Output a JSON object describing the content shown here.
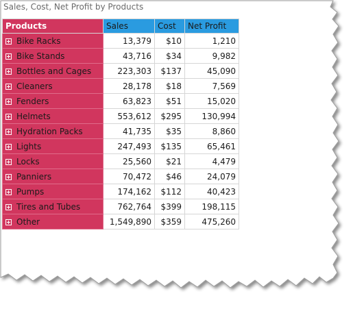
{
  "title": "Sales, Cost, Net Profit by Products",
  "colors": {
    "row_header": "#d1365e",
    "column_header": "#2a9be0",
    "row_header_border": "#e06c8a"
  },
  "columns": {
    "products": "Products",
    "sales": "Sales",
    "cost": "Cost",
    "net_profit": "Net Profit"
  },
  "expander_icon": "plus-box-icon",
  "rows": [
    {
      "product": "Bike Racks",
      "sales": "13,379",
      "cost": "$10",
      "net_profit": "1,210"
    },
    {
      "product": "Bike Stands",
      "sales": "43,716",
      "cost": "$34",
      "net_profit": "9,982"
    },
    {
      "product": "Bottles and Cages",
      "sales": "223,303",
      "cost": "$137",
      "net_profit": "45,090"
    },
    {
      "product": "Cleaners",
      "sales": "28,178",
      "cost": "$18",
      "net_profit": "7,569"
    },
    {
      "product": "Fenders",
      "sales": "63,823",
      "cost": "$51",
      "net_profit": "15,020"
    },
    {
      "product": "Helmets",
      "sales": "553,612",
      "cost": "$295",
      "net_profit": "130,994"
    },
    {
      "product": "Hydration Packs",
      "sales": "41,735",
      "cost": "$35",
      "net_profit": "8,860"
    },
    {
      "product": "Lights",
      "sales": "247,493",
      "cost": "$135",
      "net_profit": "65,461"
    },
    {
      "product": "Locks",
      "sales": "25,560",
      "cost": "$21",
      "net_profit": "4,479"
    },
    {
      "product": "Panniers",
      "sales": "70,472",
      "cost": "$46",
      "net_profit": "24,079"
    },
    {
      "product": "Pumps",
      "sales": "174,162",
      "cost": "$112",
      "net_profit": "40,423"
    },
    {
      "product": "Tires and Tubes",
      "sales": "762,764",
      "cost": "$399",
      "net_profit": "198,115"
    },
    {
      "product": "Other",
      "sales": "1,549,890",
      "cost": "$359",
      "net_profit": "475,260"
    }
  ]
}
